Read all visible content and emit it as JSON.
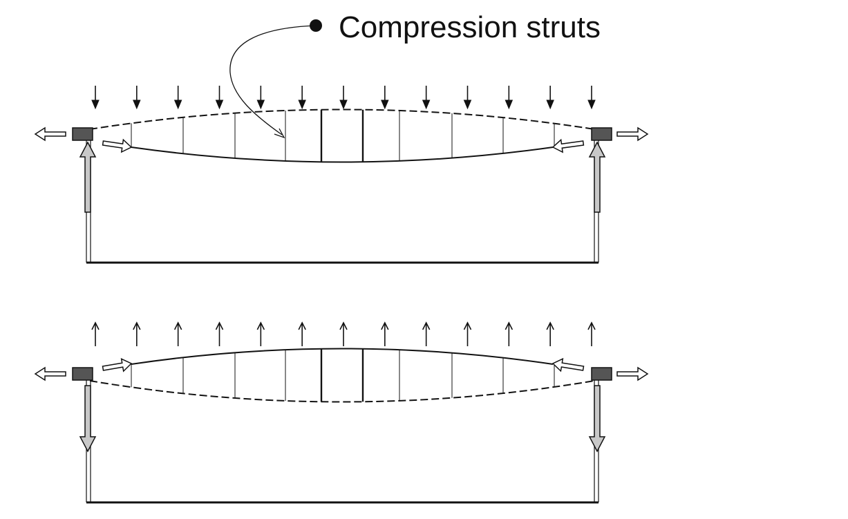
{
  "annotation": {
    "label": "Compression struts"
  },
  "diagrams": [
    {
      "id": "downward-load",
      "load_direction": "down",
      "support_reaction": "up",
      "load_arrow_count": 13
    },
    {
      "id": "upward-load",
      "load_direction": "up",
      "support_reaction": "down",
      "load_arrow_count": 13
    }
  ],
  "colors": {
    "line": "#111111",
    "anchor_block": "#555555",
    "reaction_arrow_fill": "#c8c8c8",
    "tension_arrow_fill": "#ffffff"
  }
}
